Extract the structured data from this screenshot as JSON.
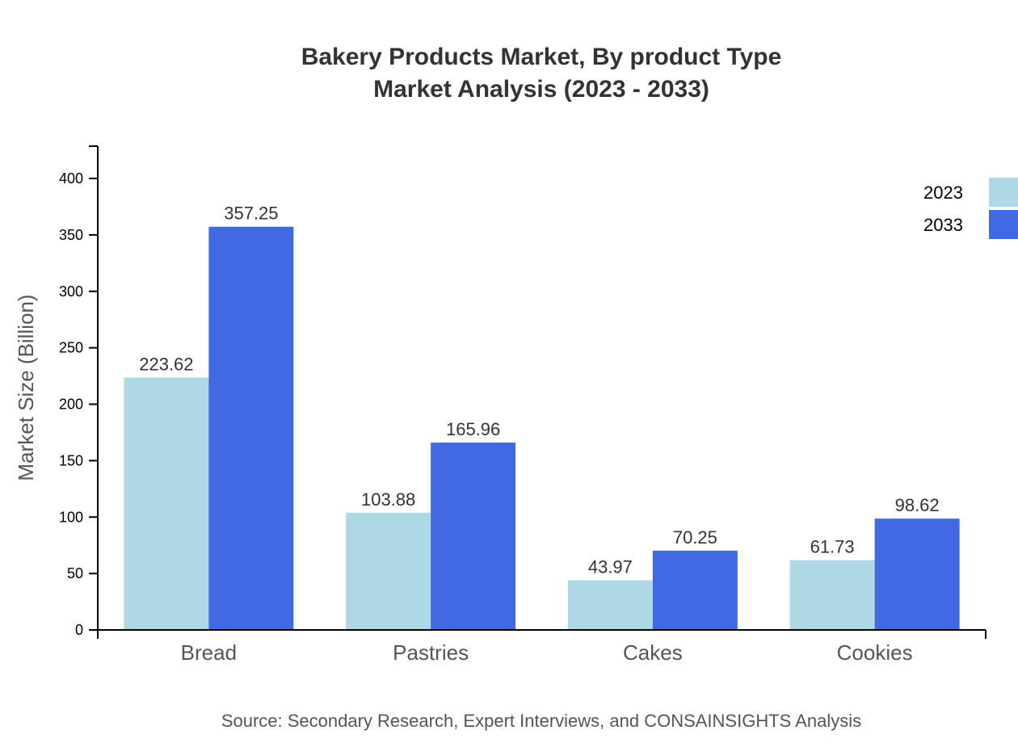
{
  "chart_data": {
    "type": "bar",
    "title": "Bakery Products Market, By product Type",
    "subtitle": "Market Analysis (2023 - 2033)",
    "categories": [
      "Bread",
      "Pastries",
      "Cakes",
      "Cookies"
    ],
    "series": [
      {
        "name": "2023",
        "color": "#add8e6",
        "values": [
          223.62,
          103.88,
          43.97,
          61.73
        ]
      },
      {
        "name": "2033",
        "color": "#4169e1",
        "values": [
          357.25,
          165.96,
          70.25,
          98.62
        ]
      }
    ],
    "ylabel": "Market Size (Billion)",
    "xlabel": "",
    "ylim": [
      0,
      429
    ],
    "yticks": [
      0,
      50,
      100,
      150,
      200,
      250,
      300,
      350,
      400
    ],
    "legend": "top-right",
    "grid": false,
    "source": "Source: Secondary Research, Expert Interviews, and CONSAINSIGHTS Analysis"
  }
}
